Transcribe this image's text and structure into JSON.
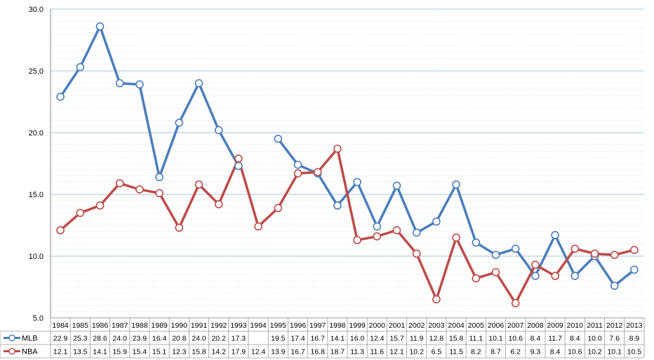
{
  "chart_data": {
    "type": "line",
    "title": "",
    "xlabel": "",
    "ylabel": "",
    "ylim": [
      5.0,
      30.0
    ],
    "y_ticks": [
      "5.0",
      "10.0",
      "15.0",
      "20.0",
      "25.0",
      "30.0"
    ],
    "grid": true,
    "legend": "bottom-left (data table)",
    "categories": [
      "1984",
      "1985",
      "1986",
      "1987",
      "1988",
      "1989",
      "1990",
      "1991",
      "1992",
      "1993",
      "1994",
      "1995",
      "1996",
      "1997",
      "1998",
      "1999",
      "2000",
      "2001",
      "2002",
      "2003",
      "2004",
      "2005",
      "2006",
      "2007",
      "2008",
      "2009",
      "2010",
      "2011",
      "2012",
      "2013"
    ],
    "series": [
      {
        "name": "MLB",
        "color": "#4a7ebb",
        "values": [
          22.9,
          25.3,
          28.6,
          24.0,
          23.9,
          16.4,
          20.8,
          24.0,
          20.2,
          17.3,
          null,
          19.5,
          17.4,
          16.7,
          14.1,
          16.0,
          12.4,
          15.7,
          11.9,
          12.8,
          15.8,
          11.1,
          10.1,
          10.6,
          8.4,
          11.7,
          8.4,
          10.0,
          7.6,
          8.9
        ],
        "labels": [
          "22.9",
          "25.3",
          "28.6",
          "24.0",
          "23.9",
          "16.4",
          "20.8",
          "24.0",
          "20.2",
          "17.3",
          "",
          "19.5",
          "17.4",
          "16.7",
          "14.1",
          "16.0",
          "12.4",
          "15.7",
          "11.9",
          "12.8",
          "15.8",
          "11.1",
          "10.1",
          "10.6",
          "8.4",
          "11.7",
          "8.4",
          "10.0",
          "7.6",
          "8.9"
        ]
      },
      {
        "name": "NBA",
        "color": "#be4b48",
        "values": [
          12.1,
          13.5,
          14.1,
          15.9,
          15.4,
          15.1,
          12.3,
          15.8,
          14.2,
          17.9,
          12.4,
          13.9,
          16.7,
          16.8,
          18.7,
          11.3,
          11.6,
          12.1,
          10.2,
          6.5,
          11.5,
          8.2,
          8.7,
          6.2,
          9.3,
          8.4,
          10.6,
          10.2,
          10.1,
          10.5
        ],
        "labels": [
          "12.1",
          "13.5",
          "14.1",
          "15.9",
          "15.4",
          "15.1",
          "12.3",
          "15.8",
          "14.2",
          "17.9",
          "12.4",
          "13.9",
          "16.7",
          "16.8",
          "18.7",
          "11.3",
          "11.6",
          "12.1",
          "10.2",
          "6.5",
          "11.5",
          "8.2",
          "8.7",
          "6.2",
          "9.3",
          "8.4",
          "10.6",
          "10.2",
          "10.1",
          "10.5"
        ]
      }
    ]
  }
}
